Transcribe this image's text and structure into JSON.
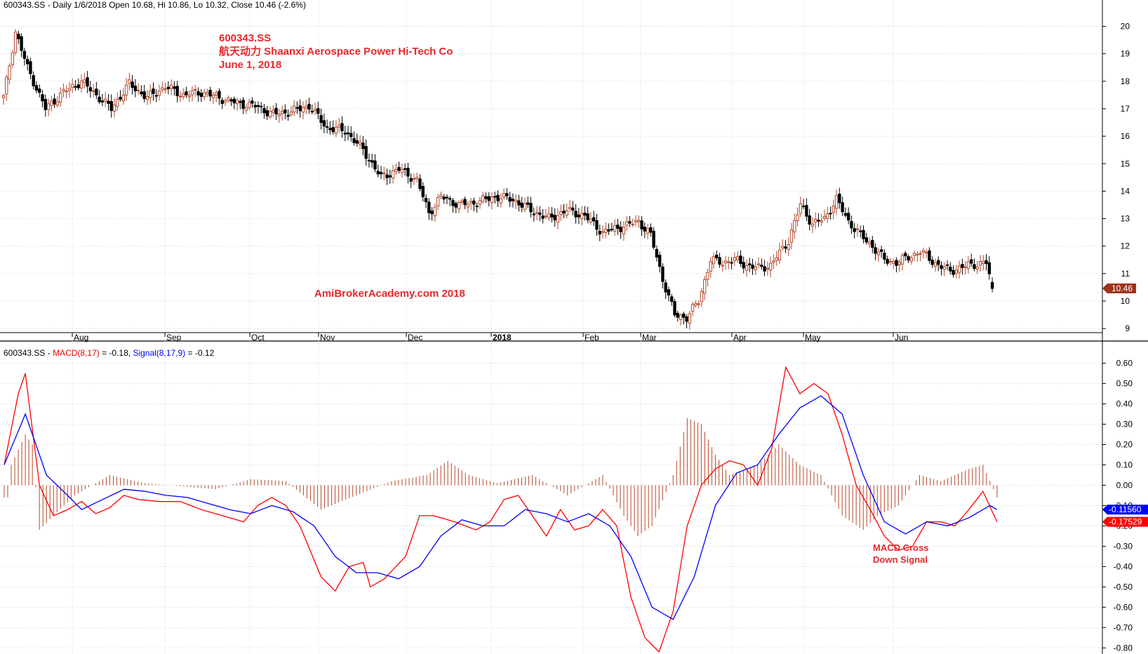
{
  "price_panel": {
    "header": "600343.SS - Daily 1/6/2018 Open 10.68, Hi 10.86, Lo 10.32, Close 10.46 (-2.6%)",
    "title_lines": [
      "600343.SS",
      "航天动力 Shaanxi Aerospace Power Hi-Tech Co",
      "June 1, 2018"
    ],
    "watermark": "AmiBrokerAcademy.com  2018",
    "last_price_label": "10.46"
  },
  "macd_panel": {
    "header_prefix": "600343.SS - ",
    "macd_label": "MACD(8,17)",
    "macd_value": " = -0.18, ",
    "signal_label": "Signal(8,17,9)",
    "signal_value": " = -0.12",
    "annotation_lines": [
      "MACD Cross",
      "Down Signal"
    ],
    "signal_last_label": "-0.11560",
    "macd_last_label": "-0.17529"
  },
  "colors": {
    "up_candle": "#b5482a",
    "down_candle": "#000000",
    "macd_line": "#ff0000",
    "signal_line": "#0000ff",
    "histogram": "#b5482a",
    "annotation": "#e8282c",
    "grid": "#d8d8d8"
  },
  "chart_data": [
    {
      "type": "candlestick",
      "title": "600343.SS 航天动力 Shaanxi Aerospace Power Hi-Tech Co",
      "y_axis": {
        "range": [
          8.8,
          20.6
        ],
        "ticks": [
          9,
          10,
          11,
          12,
          13,
          14,
          15,
          16,
          17,
          18,
          19,
          20
        ]
      },
      "x_axis_labels": [
        "Aug",
        "Sep",
        "Oct",
        "Nov",
        "Dec",
        "2018",
        "Feb",
        "Mar",
        "Apr",
        "May",
        "Jun"
      ],
      "x_axis_bold": [
        "2018"
      ],
      "close_series_approx": [
        [
          0,
          17.4
        ],
        [
          4,
          19.8
        ],
        [
          8,
          18.5
        ],
        [
          14,
          17.0
        ],
        [
          20,
          17.6
        ],
        [
          26,
          18.0
        ],
        [
          30,
          17.6
        ],
        [
          36,
          17.0
        ],
        [
          42,
          17.9
        ],
        [
          48,
          17.4
        ],
        [
          54,
          17.8
        ],
        [
          60,
          17.5
        ],
        [
          66,
          17.6
        ],
        [
          72,
          17.4
        ],
        [
          78,
          17.2
        ],
        [
          84,
          17.1
        ],
        [
          90,
          16.8
        ],
        [
          96,
          16.9
        ],
        [
          102,
          17.1
        ],
        [
          108,
          16.3
        ],
        [
          114,
          16.2
        ],
        [
          120,
          15.5
        ],
        [
          126,
          14.5
        ],
        [
          132,
          14.8
        ],
        [
          138,
          14.4
        ],
        [
          142,
          13.2
        ],
        [
          146,
          13.8
        ],
        [
          152,
          13.5
        ],
        [
          158,
          13.6
        ],
        [
          164,
          13.8
        ],
        [
          170,
          13.7
        ],
        [
          176,
          13.3
        ],
        [
          182,
          13.0
        ],
        [
          188,
          13.3
        ],
        [
          194,
          13.1
        ],
        [
          200,
          12.5
        ],
        [
          206,
          12.7
        ],
        [
          212,
          12.9
        ],
        [
          216,
          12.4
        ],
        [
          220,
          10.8
        ],
        [
          224,
          9.5
        ],
        [
          228,
          9.4
        ],
        [
          232,
          10.0
        ],
        [
          236,
          11.5
        ],
        [
          240,
          11.4
        ],
        [
          244,
          11.5
        ],
        [
          248,
          11.3
        ],
        [
          252,
          11.2
        ],
        [
          256,
          11.3
        ],
        [
          262,
          12.2
        ],
        [
          266,
          13.5
        ],
        [
          270,
          12.8
        ],
        [
          274,
          13.0
        ],
        [
          278,
          13.7
        ],
        [
          282,
          12.9
        ],
        [
          286,
          12.4
        ],
        [
          290,
          12.0
        ],
        [
          294,
          11.5
        ],
        [
          298,
          11.4
        ],
        [
          302,
          11.6
        ],
        [
          306,
          11.8
        ],
        [
          312,
          11.3
        ],
        [
          316,
          11.1
        ],
        [
          322,
          11.3
        ],
        [
          328,
          11.4
        ],
        [
          330,
          10.46
        ]
      ],
      "last_close": 10.46
    },
    {
      "type": "line",
      "y_axis": {
        "range": [
          -0.83,
          0.64
        ],
        "ticks": [
          0.6,
          0.5,
          0.4,
          0.3,
          0.2,
          0.1,
          0.0,
          -0.1,
          -0.2,
          -0.3,
          -0.4,
          -0.5,
          -0.6,
          -0.7,
          -0.8
        ]
      },
      "series": [
        {
          "name": "MACD(8,17)",
          "points": [
            [
              0,
              0.1
            ],
            [
              4,
              0.45
            ],
            [
              6,
              0.55
            ],
            [
              10,
              0.0
            ],
            [
              14,
              -0.15
            ],
            [
              18,
              -0.12
            ],
            [
              22,
              -0.08
            ],
            [
              26,
              -0.14
            ],
            [
              30,
              -0.11
            ],
            [
              34,
              -0.05
            ],
            [
              38,
              -0.07
            ],
            [
              44,
              -0.08
            ],
            [
              50,
              -0.08
            ],
            [
              56,
              -0.12
            ],
            [
              62,
              -0.15
            ],
            [
              68,
              -0.18
            ],
            [
              72,
              -0.1
            ],
            [
              76,
              -0.06
            ],
            [
              80,
              -0.1
            ],
            [
              84,
              -0.2
            ],
            [
              90,
              -0.45
            ],
            [
              94,
              -0.52
            ],
            [
              98,
              -0.4
            ],
            [
              102,
              -0.38
            ],
            [
              104,
              -0.5
            ],
            [
              108,
              -0.46
            ],
            [
              114,
              -0.35
            ],
            [
              118,
              -0.15
            ],
            [
              122,
              -0.15
            ],
            [
              128,
              -0.18
            ],
            [
              134,
              -0.22
            ],
            [
              138,
              -0.18
            ],
            [
              142,
              -0.07
            ],
            [
              146,
              -0.05
            ],
            [
              150,
              -0.15
            ],
            [
              154,
              -0.25
            ],
            [
              158,
              -0.12
            ],
            [
              162,
              -0.22
            ],
            [
              166,
              -0.2
            ],
            [
              170,
              -0.12
            ],
            [
              174,
              -0.2
            ],
            [
              178,
              -0.55
            ],
            [
              182,
              -0.75
            ],
            [
              186,
              -0.82
            ],
            [
              190,
              -0.62
            ],
            [
              194,
              -0.2
            ],
            [
              198,
              0.0
            ],
            [
              202,
              0.08
            ],
            [
              206,
              0.12
            ],
            [
              210,
              0.1
            ],
            [
              214,
              0.0
            ],
            [
              218,
              0.18
            ],
            [
              222,
              0.58
            ],
            [
              226,
              0.45
            ],
            [
              230,
              0.5
            ],
            [
              234,
              0.45
            ],
            [
              238,
              0.25
            ],
            [
              242,
              0.0
            ],
            [
              246,
              -0.12
            ],
            [
              250,
              -0.25
            ],
            [
              254,
              -0.32
            ],
            [
              258,
              -0.3
            ],
            [
              262,
              -0.18
            ],
            [
              266,
              -0.18
            ],
            [
              270,
              -0.2
            ],
            [
              274,
              -0.12
            ],
            [
              278,
              -0.03
            ],
            [
              282,
              -0.18
            ]
          ]
        },
        {
          "name": "Signal(8,17,9)",
          "points": [
            [
              0,
              0.1
            ],
            [
              6,
              0.35
            ],
            [
              12,
              0.05
            ],
            [
              18,
              -0.05
            ],
            [
              22,
              -0.12
            ],
            [
              28,
              -0.07
            ],
            [
              34,
              -0.02
            ],
            [
              40,
              -0.03
            ],
            [
              46,
              -0.05
            ],
            [
              52,
              -0.06
            ],
            [
              58,
              -0.09
            ],
            [
              64,
              -0.12
            ],
            [
              70,
              -0.14
            ],
            [
              76,
              -0.1
            ],
            [
              82,
              -0.13
            ],
            [
              88,
              -0.2
            ],
            [
              94,
              -0.35
            ],
            [
              100,
              -0.43
            ],
            [
              106,
              -0.43
            ],
            [
              112,
              -0.46
            ],
            [
              118,
              -0.4
            ],
            [
              124,
              -0.25
            ],
            [
              130,
              -0.17
            ],
            [
              136,
              -0.2
            ],
            [
              142,
              -0.2
            ],
            [
              148,
              -0.12
            ],
            [
              154,
              -0.14
            ],
            [
              160,
              -0.18
            ],
            [
              166,
              -0.14
            ],
            [
              172,
              -0.2
            ],
            [
              178,
              -0.35
            ],
            [
              184,
              -0.6
            ],
            [
              190,
              -0.66
            ],
            [
              196,
              -0.45
            ],
            [
              202,
              -0.1
            ],
            [
              208,
              0.06
            ],
            [
              214,
              0.1
            ],
            [
              220,
              0.25
            ],
            [
              226,
              0.38
            ],
            [
              232,
              0.44
            ],
            [
              238,
              0.35
            ],
            [
              244,
              0.05
            ],
            [
              250,
              -0.18
            ],
            [
              256,
              -0.24
            ],
            [
              262,
              -0.18
            ],
            [
              268,
              -0.2
            ],
            [
              274,
              -0.16
            ],
            [
              280,
              -0.1
            ],
            [
              282,
              -0.12
            ]
          ]
        },
        {
          "name": "histogram",
          "type": "bar",
          "values_approx": [
            [
              2,
              0.1
            ],
            [
              6,
              0.25
            ],
            [
              8,
              0.2
            ],
            [
              10,
              -0.22
            ],
            [
              14,
              -0.15
            ],
            [
              20,
              -0.05
            ],
            [
              30,
              0.05
            ],
            [
              40,
              0.01
            ],
            [
              60,
              -0.02
            ],
            [
              70,
              0.03
            ],
            [
              80,
              0.02
            ],
            [
              90,
              -0.12
            ],
            [
              100,
              -0.05
            ],
            [
              110,
              0.02
            ],
            [
              120,
              0.05
            ],
            [
              126,
              0.12
            ],
            [
              132,
              0.05
            ],
            [
              140,
              0.01
            ],
            [
              150,
              0.05
            ],
            [
              160,
              -0.05
            ],
            [
              170,
              0.05
            ],
            [
              176,
              -0.15
            ],
            [
              180,
              -0.25
            ],
            [
              184,
              -0.2
            ],
            [
              190,
              0.05
            ],
            [
              194,
              0.33
            ],
            [
              198,
              0.3
            ],
            [
              202,
              0.15
            ],
            [
              206,
              0.05
            ],
            [
              214,
              0.1
            ],
            [
              220,
              0.2
            ],
            [
              226,
              0.1
            ],
            [
              232,
              0.05
            ],
            [
              238,
              -0.15
            ],
            [
              244,
              -0.22
            ],
            [
              248,
              -0.15
            ],
            [
              254,
              -0.1
            ],
            [
              260,
              0.05
            ],
            [
              266,
              0.02
            ],
            [
              274,
              0.08
            ],
            [
              278,
              0.1
            ],
            [
              282,
              -0.06
            ]
          ]
        }
      ],
      "title": ""
    }
  ]
}
